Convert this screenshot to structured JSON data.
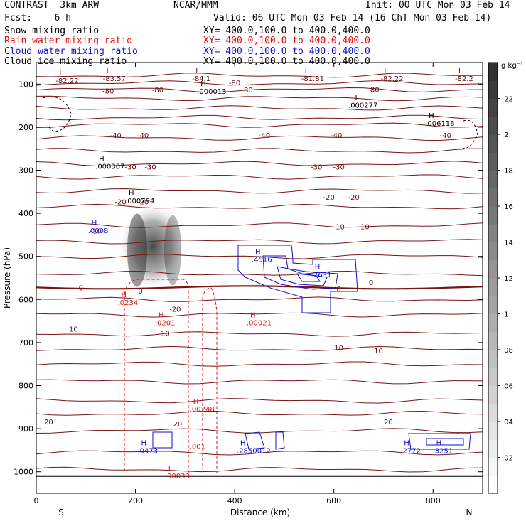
{
  "header": {
    "model": "CONTRAST  3km ARW",
    "center": "NCAR/MMM",
    "init": "Init: 00 UTC Mon 03 Feb 14",
    "fcst": "Fcst:    6 h",
    "valid": "Valid: 06 UTC Mon 03 Feb 14 (16 ChT Mon 03 Feb 14)",
    "fields": [
      {
        "name": "Snow mixing ratio",
        "xy": "XY= 400.0,100.0 to 400.0,400.0",
        "color": "#000000"
      },
      {
        "name": "Rain water mixing ratio",
        "xy": "XY= 400.0,100.0 to 400.0,400.0",
        "color": "#e01010"
      },
      {
        "name": "Cloud water mixing ratio",
        "xy": "XY= 400.0,100.0 to 400.0,400.0",
        "color": "#1010d0"
      },
      {
        "name": "Cloud ice mixing ratio",
        "xy": "XY= 400.0,100.0 to 400.0,400.0",
        "color": "#000000"
      }
    ]
  },
  "chart_data": {
    "type": "contour",
    "xlabel": "Distance (km)",
    "ylabel": "Pressure (hPa)",
    "xlim": [
      0,
      900
    ],
    "ylim": [
      1050,
      50
    ],
    "x_ticks": [
      0,
      200,
      400,
      600,
      800
    ],
    "y_ticks": [
      100,
      200,
      300,
      400,
      500,
      600,
      700,
      800,
      900,
      1000
    ],
    "x_end_labels": {
      "left": "S",
      "right": "N"
    },
    "colorbar": {
      "unit": "g kg⁻¹",
      "ticks": [
        ".02",
        ".04",
        ".06",
        ".08",
        ".1",
        ".12",
        ".14",
        ".16",
        ".18",
        ".2",
        ".22"
      ],
      "max": 0.24
    },
    "temperature_contours": [
      {
        "p": 80
      },
      {
        "p": 98
      },
      {
        "p": 113
      },
      {
        "p": 133
      },
      {
        "p": 156
      },
      {
        "p": 178
      },
      {
        "p": 195
      },
      {
        "p": 225
      },
      {
        "p": 255
      },
      {
        "p": 285
      },
      {
        "p": 315
      },
      {
        "p": 348
      },
      {
        "p": 385
      },
      {
        "p": 428
      },
      {
        "p": 465
      },
      {
        "p": 500
      },
      {
        "p": 540
      },
      {
        "p": 600
      },
      {
        "p": 635
      },
      {
        "p": 680
      },
      {
        "p": 715
      },
      {
        "p": 750
      },
      {
        "p": 790
      },
      {
        "p": 835
      },
      {
        "p": 865
      },
      {
        "p": 905
      },
      {
        "p": 955
      },
      {
        "p": 995
      }
    ],
    "freezing_level": {
      "p": 572
    },
    "contour_labels": [
      {
        "x": 145,
        "p": 115,
        "text": "-80"
      },
      {
        "x": 245,
        "p": 113,
        "text": "-80"
      },
      {
        "x": 425,
        "p": 113,
        "text": "-80"
      },
      {
        "x": 680,
        "p": 112,
        "text": "-80"
      },
      {
        "x": 400,
        "p": 96,
        "text": "-80"
      },
      {
        "x": 160,
        "p": 218,
        "text": "-40"
      },
      {
        "x": 215,
        "p": 218,
        "text": "-40"
      },
      {
        "x": 460,
        "p": 218,
        "text": "-40"
      },
      {
        "x": 605,
        "p": 218,
        "text": "-40"
      },
      {
        "x": 825,
        "p": 218,
        "text": "-40"
      },
      {
        "x": 190,
        "p": 292,
        "text": "-30"
      },
      {
        "x": 230,
        "p": 292,
        "text": "-30"
      },
      {
        "x": 565,
        "p": 292,
        "text": "-30"
      },
      {
        "x": 610,
        "p": 292,
        "text": "-30"
      },
      {
        "x": 170,
        "p": 373,
        "text": "-20"
      },
      {
        "x": 215,
        "p": 373,
        "text": "-20"
      },
      {
        "x": 590,
        "p": 362,
        "text": "-20"
      },
      {
        "x": 640,
        "p": 362,
        "text": "-20"
      },
      {
        "x": 120,
        "p": 440,
        "text": "-10"
      },
      {
        "x": 610,
        "p": 430,
        "text": "-10"
      },
      {
        "x": 660,
        "p": 430,
        "text": "-10"
      },
      {
        "x": 90,
        "p": 572,
        "text": "0"
      },
      {
        "x": 210,
        "p": 580,
        "text": "0"
      },
      {
        "x": 610,
        "p": 575,
        "text": "0"
      },
      {
        "x": 675,
        "p": 560,
        "text": "0"
      },
      {
        "x": 75,
        "p": 668,
        "text": "10"
      },
      {
        "x": 260,
        "p": 678,
        "text": "10"
      },
      {
        "x": 610,
        "p": 712,
        "text": "10"
      },
      {
        "x": 690,
        "p": 718,
        "text": "10"
      },
      {
        "x": 25,
        "p": 883,
        "text": "20"
      },
      {
        "x": 285,
        "p": 888,
        "text": "20"
      },
      {
        "x": 710,
        "p": 883,
        "text": "20"
      },
      {
        "x": 280,
        "p": 622,
        "text": "-20"
      }
    ],
    "extrema_labels": [
      {
        "x": 75,
        "p": 93,
        "mark": "L",
        "value": "-82.22",
        "color": "#6b0a0a"
      },
      {
        "x": 170,
        "p": 88,
        "mark": "L",
        "value": "-83.57",
        "color": "#6b0a0a"
      },
      {
        "x": 350,
        "p": 88,
        "mark": "L",
        "value": "-84.1",
        "color": "#6b0a0a"
      },
      {
        "x": 570,
        "p": 88,
        "mark": "L",
        "value": "-81.81",
        "color": "#6b0a0a"
      },
      {
        "x": 730,
        "p": 88,
        "mark": "L",
        "value": "-82.22",
        "color": "#6b0a0a"
      },
      {
        "x": 880,
        "p": 88,
        "mark": "L",
        "value": "-82.2",
        "color": "#6b0a0a"
      },
      {
        "x": 360,
        "p": 118,
        "mark": "H",
        "value": ".000013",
        "color": "#000000"
      },
      {
        "x": 665,
        "p": 150,
        "mark": "H",
        "value": ".000277",
        "color": "#000000"
      },
      {
        "x": 820,
        "p": 192,
        "mark": "H",
        "value": ".006118",
        "color": "#000000"
      },
      {
        "x": 155,
        "p": 292,
        "mark": "H",
        "value": ".000307",
        "color": "#000000"
      },
      {
        "x": 215,
        "p": 372,
        "mark": "H",
        "value": ".000794",
        "color": "#000000"
      },
      {
        "x": 140,
        "p": 441,
        "mark": "H",
        "value": ".0008",
        "color": "#1010d0"
      },
      {
        "x": 470,
        "p": 508,
        "mark": "H",
        "value": ".4516",
        "color": "#1010d0"
      },
      {
        "x": 590,
        "p": 543,
        "mark": "H",
        "value": ".2631",
        "color": "#1010d0"
      },
      {
        "x": 200,
        "p": 608,
        "mark": "H",
        "value": ".0234",
        "color": "#e01010"
      },
      {
        "x": 275,
        "p": 655,
        "mark": "H",
        "value": ".0201",
        "color": "#e01010"
      },
      {
        "x": 460,
        "p": 655,
        "mark": "H",
        "value": ".00021",
        "color": "#e01010"
      },
      {
        "x": 345,
        "p": 855,
        "mark": "H",
        "value": ".00248",
        "color": "#e01010"
      },
      {
        "x": 240,
        "p": 952,
        "mark": "H",
        "value": ".0473",
        "color": "#1010d0"
      },
      {
        "x": 345,
        "p": 942,
        "mark": "",
        "value": ".001",
        "color": "#e01010"
      },
      {
        "x": 440,
        "p": 952,
        "mark": "H",
        "value": ".2850012",
        "color": "#1010d0"
      },
      {
        "x": 295,
        "p": 1010,
        "mark": "L",
        "value": ".00033",
        "color": "#e01010"
      },
      {
        "x": 770,
        "p": 952,
        "mark": "H",
        "value": ".2772",
        "color": "#1010d0"
      },
      {
        "x": 835,
        "p": 952,
        "mark": "H",
        "value": ".3251",
        "color": "#1010d0"
      }
    ],
    "snow_shading": [
      {
        "x0": 170,
        "x1": 300,
        "p_top": 380,
        "p_bot": 575,
        "peak": 0.2
      }
    ]
  }
}
